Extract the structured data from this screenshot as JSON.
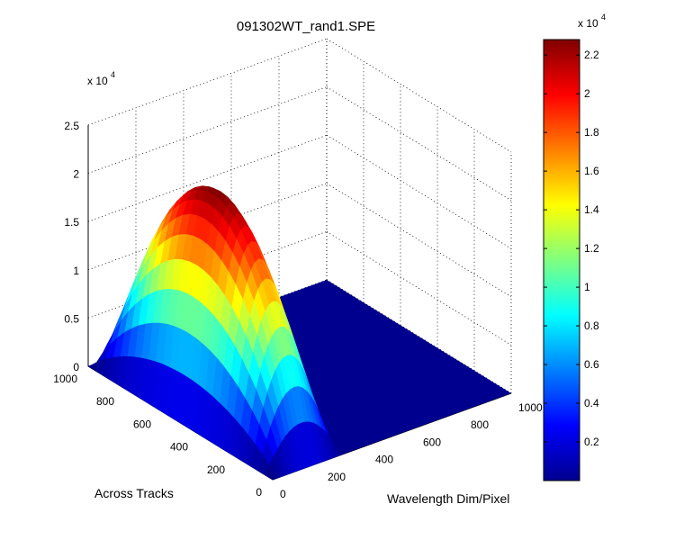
{
  "chart_data": {
    "type": "surface",
    "title": "091302WT_rand1.SPE",
    "xlabel": "Wavelength Dim/Pixel",
    "ylabel": "Across Tracks",
    "zlabel": "",
    "z_multiplier_label": "x 10",
    "z_multiplier_exponent": "4",
    "x_range": [
      0,
      1000
    ],
    "y_range": [
      0,
      1000
    ],
    "zlim": [
      0,
      25000
    ],
    "x_ticks": [
      "0",
      "200",
      "400",
      "600",
      "800",
      "1000"
    ],
    "y_ticks": [
      "0",
      "200",
      "400",
      "600",
      "800",
      "1000"
    ],
    "z_ticks": [
      "0",
      "0.5",
      "1",
      "1.5",
      "2",
      "2.5"
    ],
    "grid": true,
    "colormap": "jet",
    "colorbar": {
      "range": [
        0,
        22800
      ],
      "ticks": [
        "0.2",
        "0.4",
        "0.6",
        "0.8",
        "1",
        "1.2",
        "1.4",
        "1.6",
        "1.8",
        "2",
        "2.2"
      ],
      "multiplier_label": "x 10",
      "multiplier_exponent": "4"
    },
    "peak": {
      "x_center": 150,
      "x_extent": [
        0,
        300
      ],
      "y_extent": [
        0,
        1000
      ],
      "y_center": 500,
      "max_value": 22800,
      "baseline": 0
    }
  }
}
